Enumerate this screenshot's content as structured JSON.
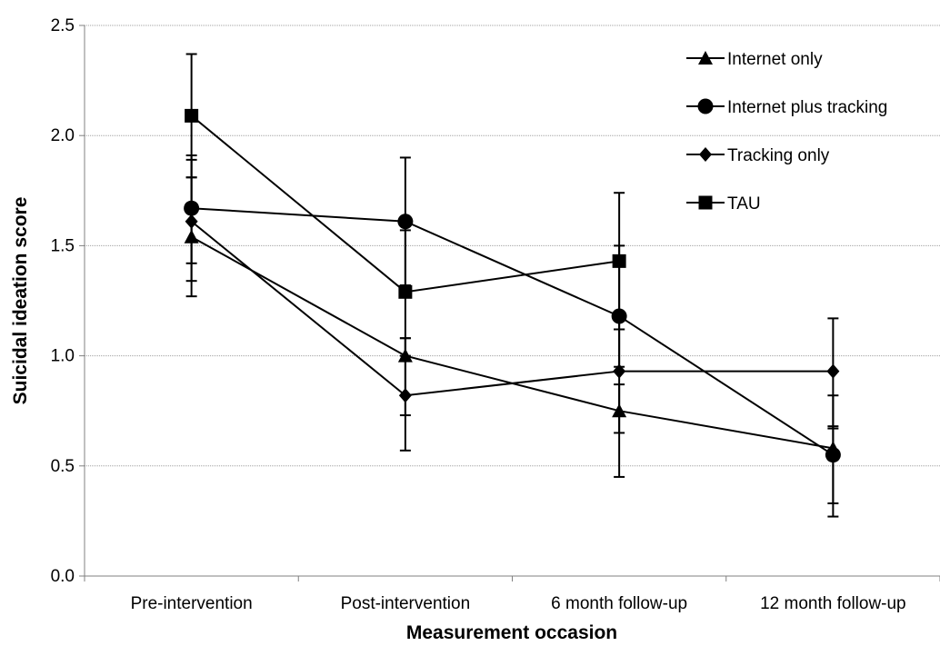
{
  "chart_data": {
    "type": "line",
    "title": "",
    "xlabel": "Measurement occasion",
    "ylabel": "Suicidal ideation score",
    "categories": [
      "Pre-intervention",
      "Post-intervention",
      "6 month follow-up",
      "12 month follow-up"
    ],
    "ylim": [
      0,
      2.5
    ],
    "yticks": [
      "0.0",
      "0.5",
      "1.0",
      "1.5",
      "2.0",
      "2.5"
    ],
    "grid": "horizontal",
    "legend_position": "top-right",
    "series": [
      {
        "name": "Internet only",
        "marker": "triangle",
        "values": [
          1.54,
          1.0,
          0.75,
          0.58
        ],
        "error_low": [
          1.27,
          0.73,
          0.45,
          0.33
        ],
        "error_high": [
          1.81,
          1.08,
          0.87,
          0.68
        ]
      },
      {
        "name": "Internet plus tracking",
        "marker": "circle",
        "values": [
          1.67,
          1.61,
          1.18,
          0.55
        ],
        "error_low": [
          1.42,
          1.32,
          0.95,
          0.27
        ],
        "error_high": [
          1.91,
          1.9,
          1.5,
          0.82
        ]
      },
      {
        "name": "Tracking only",
        "marker": "diamond",
        "values": [
          1.61,
          0.82,
          0.93,
          0.93
        ],
        "error_low": [
          1.34,
          0.57,
          0.65,
          0.67
        ],
        "error_high": [
          1.89,
          1.08,
          1.12,
          1.17
        ]
      },
      {
        "name": "TAU",
        "marker": "square",
        "values": [
          2.09,
          1.29,
          1.43,
          null
        ],
        "error_low": [
          1.81,
          1.0,
          1.12,
          null
        ],
        "error_high": [
          2.37,
          1.57,
          1.74,
          null
        ]
      }
    ]
  }
}
